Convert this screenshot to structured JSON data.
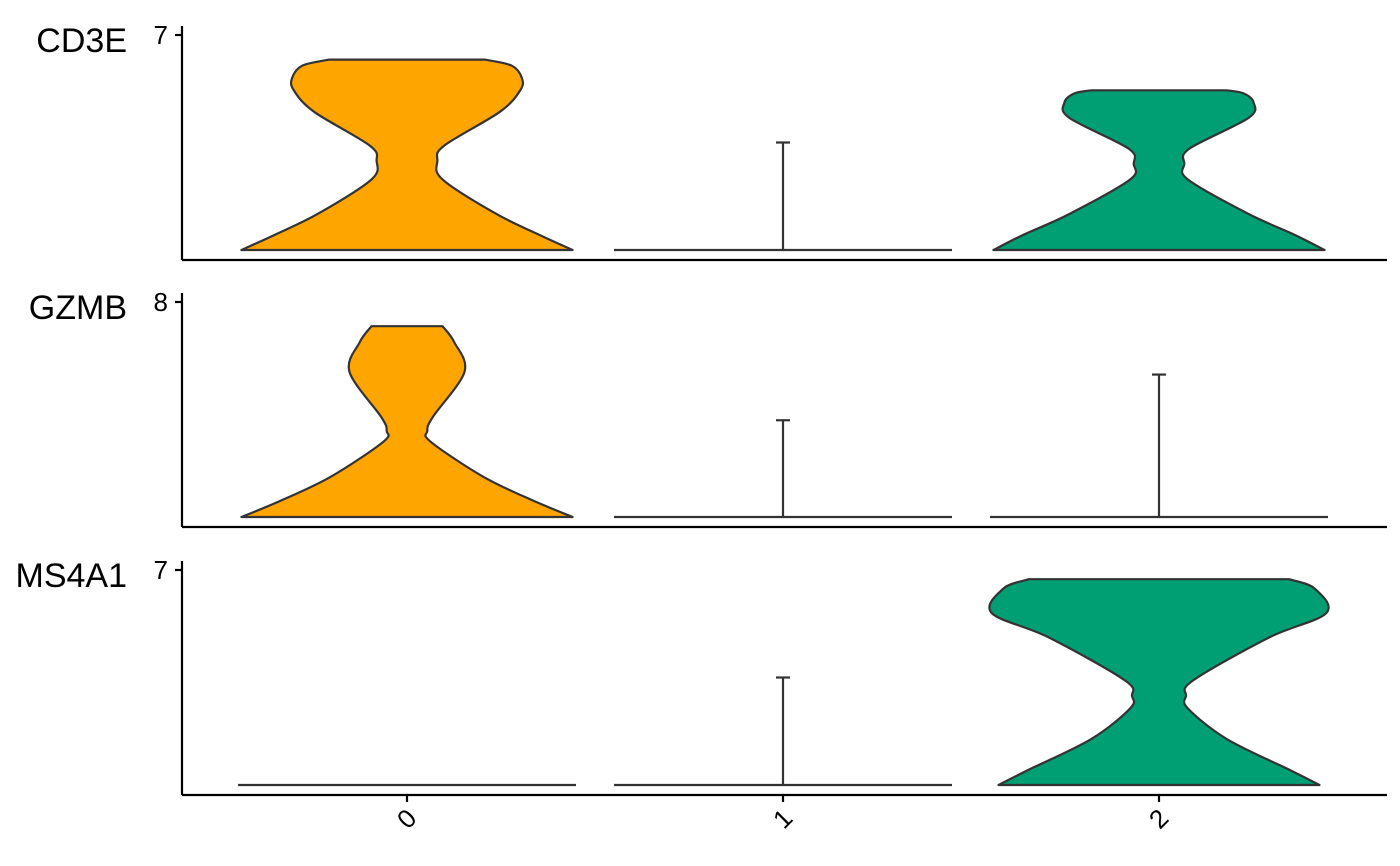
{
  "chart_data": {
    "type": "violin",
    "groups": [
      "0",
      "1",
      "2"
    ],
    "colors": {
      "0": "#FFA500",
      "1": "#FFFFFF",
      "2": "#009E73"
    },
    "x_ticks": [
      "0",
      "1",
      "2"
    ],
    "x_tick_rotation_deg": -45,
    "panels": [
      {
        "gene": "CD3E",
        "ymax_label": "7",
        "ymax": 7,
        "violins": [
          {
            "group": "0",
            "ymin": 0,
            "ymax": 6.2,
            "shape": [
              [
                0,
                0.98
              ],
              [
                0.5,
                0.78
              ],
              [
                1.2,
                0.52
              ],
              [
                2.3,
                0.21
              ],
              [
                2.9,
                0.18
              ],
              [
                3.4,
                0.22
              ],
              [
                4.5,
                0.55
              ],
              [
                5.2,
                0.67
              ],
              [
                5.6,
                0.68
              ],
              [
                6.0,
                0.62
              ],
              [
                6.2,
                0.46
              ]
            ]
          },
          {
            "group": "1",
            "ymin": 0,
            "ymax": 3.5,
            "shape": [
              [
                0,
                1.0
              ],
              [
                0.02,
                0.01
              ],
              [
                3.5,
                0.01
              ]
            ]
          },
          {
            "group": "2",
            "ymin": 0,
            "ymax": 5.2,
            "shape": [
              [
                0,
                0.98
              ],
              [
                0.5,
                0.8
              ],
              [
                1.2,
                0.52
              ],
              [
                2.3,
                0.17
              ],
              [
                2.8,
                0.15
              ],
              [
                3.3,
                0.18
              ],
              [
                4.3,
                0.53
              ],
              [
                4.8,
                0.56
              ],
              [
                5.1,
                0.5
              ],
              [
                5.2,
                0.4
              ]
            ]
          }
        ]
      },
      {
        "gene": "GZMB",
        "ymax_label": "8",
        "ymax": 8,
        "violins": [
          {
            "group": "0",
            "ymin": 0,
            "ymax": 7.1,
            "shape": [
              [
                0,
                0.98
              ],
              [
                0.6,
                0.75
              ],
              [
                1.5,
                0.45
              ],
              [
                2.8,
                0.14
              ],
              [
                3.2,
                0.12
              ],
              [
                3.7,
                0.15
              ],
              [
                5.4,
                0.34
              ],
              [
                6.5,
                0.28
              ],
              [
                7.1,
                0.21
              ]
            ]
          },
          {
            "group": "1",
            "ymin": 0,
            "ymax": 3.6,
            "shape": [
              [
                0,
                1.0
              ],
              [
                0.02,
                0.01
              ],
              [
                3.6,
                0.01
              ]
            ]
          },
          {
            "group": "2",
            "ymin": 0,
            "ymax": 5.3,
            "shape": [
              [
                0,
                1.0
              ],
              [
                0.02,
                0.01
              ],
              [
                5.3,
                0.01
              ]
            ]
          }
        ]
      },
      {
        "gene": "MS4A1",
        "ymax_label": "7",
        "ymax": 7,
        "violins": [
          {
            "group": "0",
            "ymin": 0,
            "ymax": 0,
            "shape": [
              [
                0,
                1.0
              ]
            ]
          },
          {
            "group": "1",
            "ymin": 0,
            "ymax": 3.5,
            "shape": [
              [
                0,
                1.0
              ],
              [
                0.02,
                0.01
              ],
              [
                3.5,
                0.01
              ]
            ]
          },
          {
            "group": "2",
            "ymin": 0,
            "ymax": 6.7,
            "shape": [
              [
                0,
                0.95
              ],
              [
                0.5,
                0.77
              ],
              [
                1.5,
                0.4
              ],
              [
                2.5,
                0.17
              ],
              [
                2.9,
                0.16
              ],
              [
                3.4,
                0.2
              ],
              [
                4.8,
                0.65
              ],
              [
                5.6,
                0.99
              ],
              [
                6.4,
                0.92
              ],
              [
                6.7,
                0.77
              ]
            ]
          }
        ]
      }
    ]
  }
}
